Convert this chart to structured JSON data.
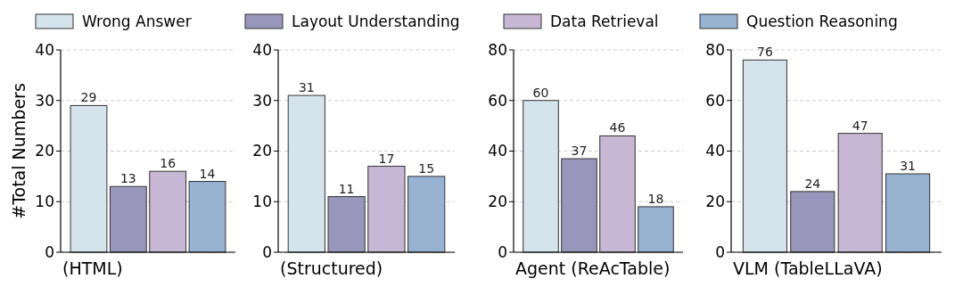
{
  "chart_data": [
    {
      "type": "bar",
      "categories": [
        null
      ],
      "xlabel": "(HTML)",
      "ylabel": "#Total Numbers",
      "ylim": [
        0,
        40
      ],
      "yticks": [
        0,
        10,
        20,
        30,
        40
      ],
      "grid": "y",
      "legend": "top",
      "data_labels": true,
      "series": [
        {
          "name": "Wrong Answer",
          "color": "#d5e3ec",
          "values": [
            29
          ]
        },
        {
          "name": "Layout Understanding",
          "color": "#9896ba",
          "values": [
            13
          ]
        },
        {
          "name": "Data Retrieval",
          "color": "#c8b7d4",
          "values": [
            16
          ]
        },
        {
          "name": "Question Reasoning",
          "color": "#98b2d2",
          "values": [
            14
          ]
        }
      ]
    },
    {
      "type": "bar",
      "categories": [
        null
      ],
      "xlabel": "(Structured)",
      "ylim": [
        0,
        40
      ],
      "yticks": [
        0,
        10,
        20,
        30,
        40
      ],
      "grid": "y",
      "data_labels": true,
      "series": [
        {
          "color": "#d5e3ec",
          "values": [
            31
          ]
        },
        {
          "color": "#9896ba",
          "values": [
            11
          ]
        },
        {
          "color": "#c8b7d4",
          "values": [
            17
          ]
        },
        {
          "color": "#98b2d2",
          "values": [
            15
          ]
        }
      ]
    },
    {
      "type": "bar",
      "categories": [
        null
      ],
      "xlabel": "Agent (ReAcTable)",
      "ylim": [
        0,
        80
      ],
      "yticks": [
        0,
        20,
        40,
        60,
        80
      ],
      "grid": "y",
      "data_labels": true,
      "series": [
        {
          "color": "#d5e3ec",
          "values": [
            60
          ]
        },
        {
          "color": "#9896ba",
          "values": [
            37
          ]
        },
        {
          "color": "#c8b7d4",
          "values": [
            46
          ]
        },
        {
          "color": "#98b2d2",
          "values": [
            18
          ]
        }
      ]
    },
    {
      "type": "bar",
      "categories": [
        null
      ],
      "xlabel": "VLM (TableLLaVA)",
      "ylim": [
        0,
        80
      ],
      "yticks": [
        0,
        20,
        40,
        60,
        80
      ],
      "grid": "y",
      "data_labels": true,
      "series": [
        {
          "color": "#d5e3ec",
          "values": [
            76
          ]
        },
        {
          "color": "#9896ba",
          "values": [
            24
          ]
        },
        {
          "color": "#c8b7d4",
          "values": [
            47
          ]
        },
        {
          "color": "#98b2d2",
          "values": [
            31
          ]
        }
      ]
    }
  ]
}
